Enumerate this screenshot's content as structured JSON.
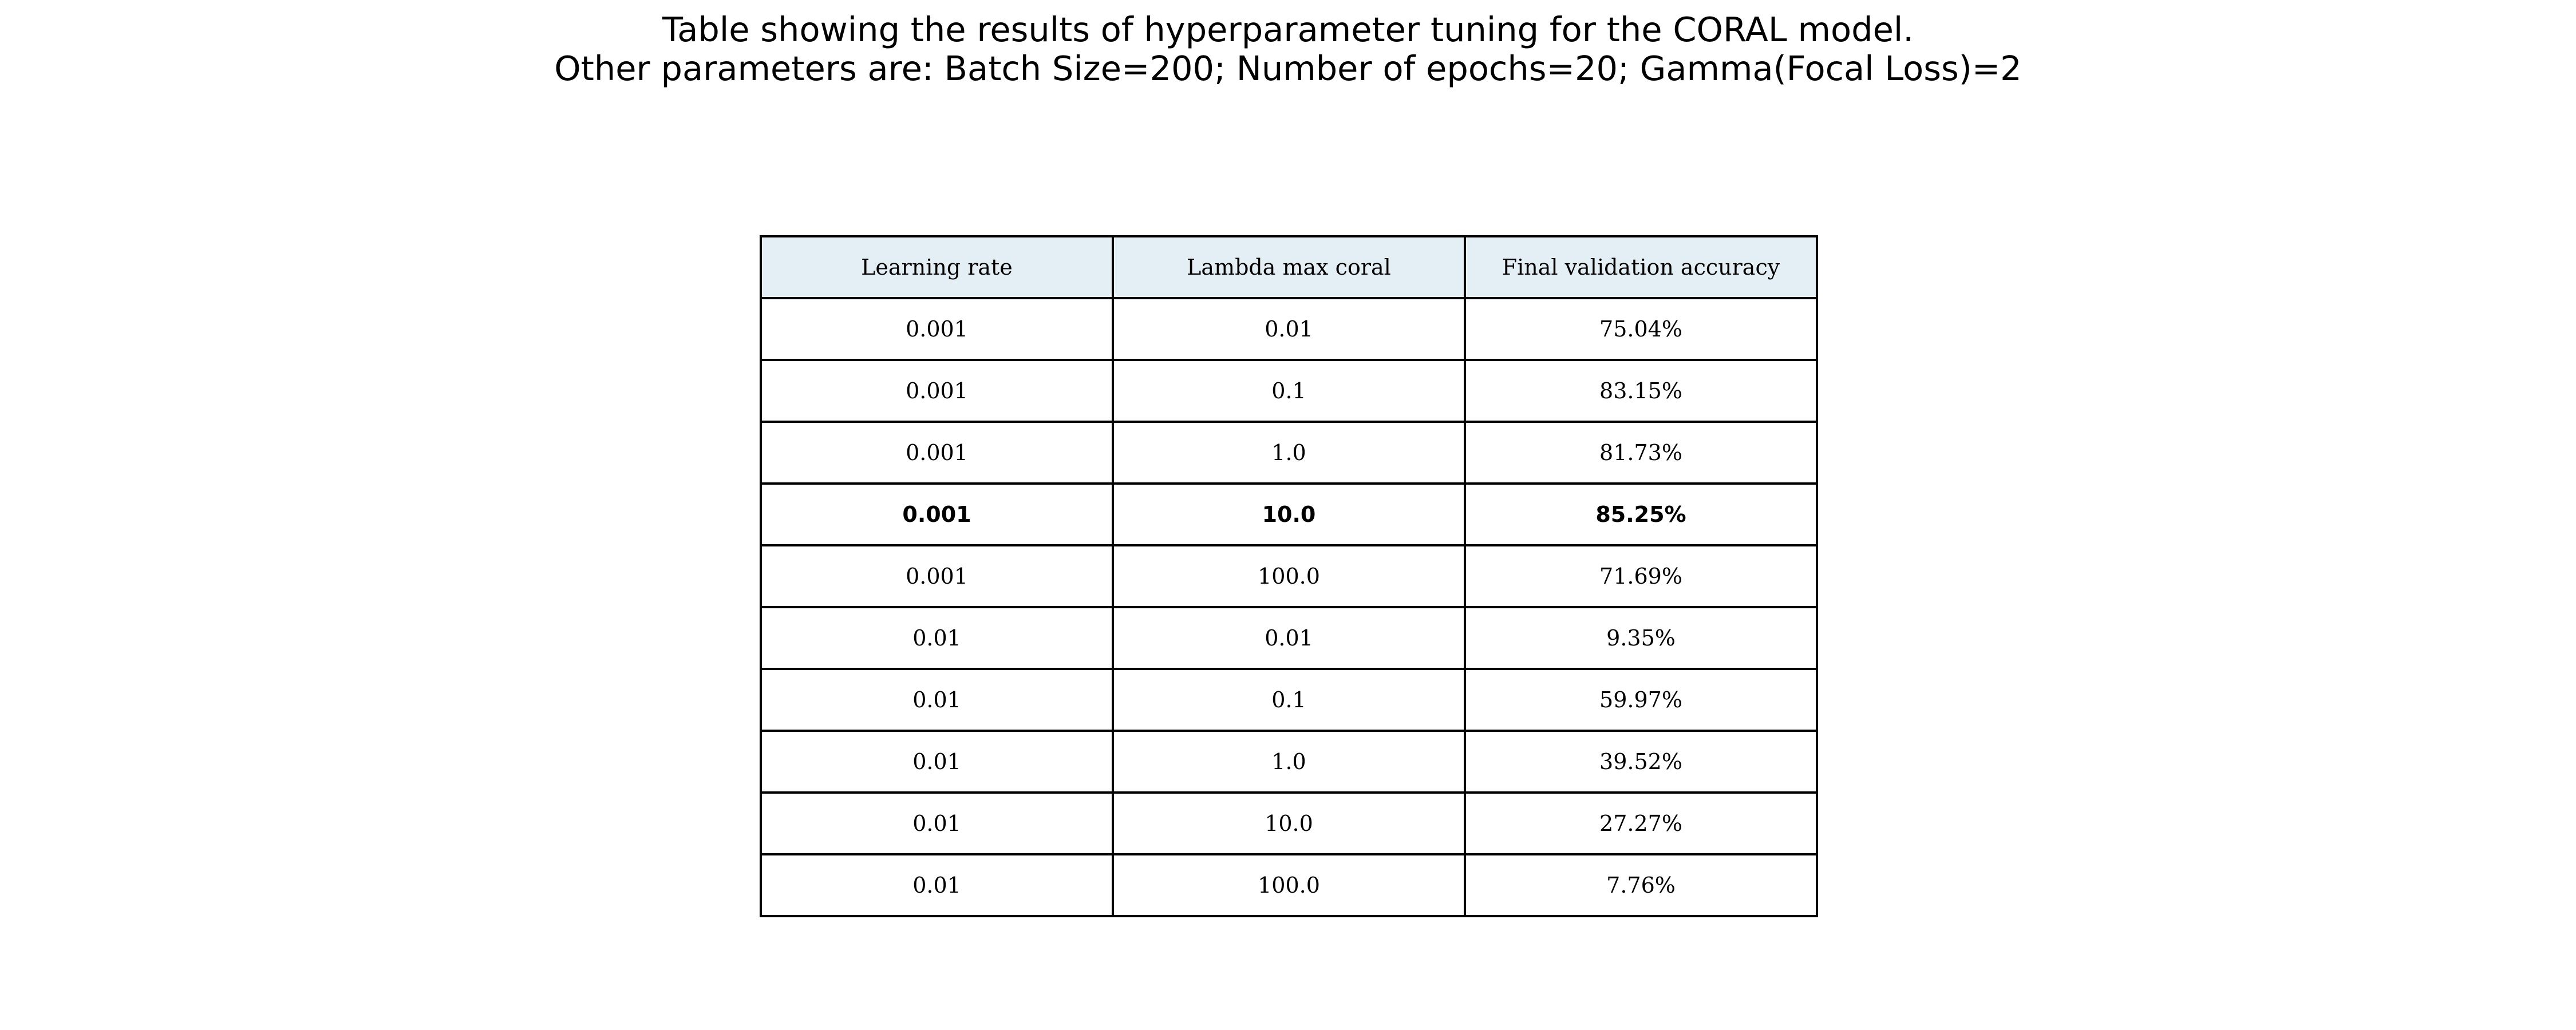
{
  "title_lines": [
    "Table showing the results of hyperparameter tuning for the CORAL model.",
    "Other parameters are: Batch Size=200; Number of epochs=20; Gamma(Focal Loss)=2"
  ],
  "chart_data": {
    "type": "table",
    "title": "Table showing the results of hyperparameter tuning for the CORAL model.",
    "subtitle": "Other parameters are: Batch Size=200; Number of epochs=20; Gamma(Focal Loss)=2",
    "columns": [
      "Learning rate",
      "Lambda max coral",
      "Final validation accuracy"
    ],
    "rows": [
      [
        "0.001",
        "0.01",
        "75.04%"
      ],
      [
        "0.001",
        "0.1",
        "83.15%"
      ],
      [
        "0.001",
        "1.0",
        "81.73%"
      ],
      [
        "0.001",
        "10.0",
        "85.25%"
      ],
      [
        "0.001",
        "100.0",
        "71.69%"
      ],
      [
        "0.01",
        "0.01",
        "9.35%"
      ],
      [
        "0.01",
        "0.1",
        "59.97%"
      ],
      [
        "0.01",
        "1.0",
        "39.52%"
      ],
      [
        "0.01",
        "10.0",
        "27.27%"
      ],
      [
        "0.01",
        "100.0",
        "7.76%"
      ]
    ],
    "highlighted_row_index": 3,
    "header_background": "#e3eff5",
    "border_color": "#000000"
  }
}
